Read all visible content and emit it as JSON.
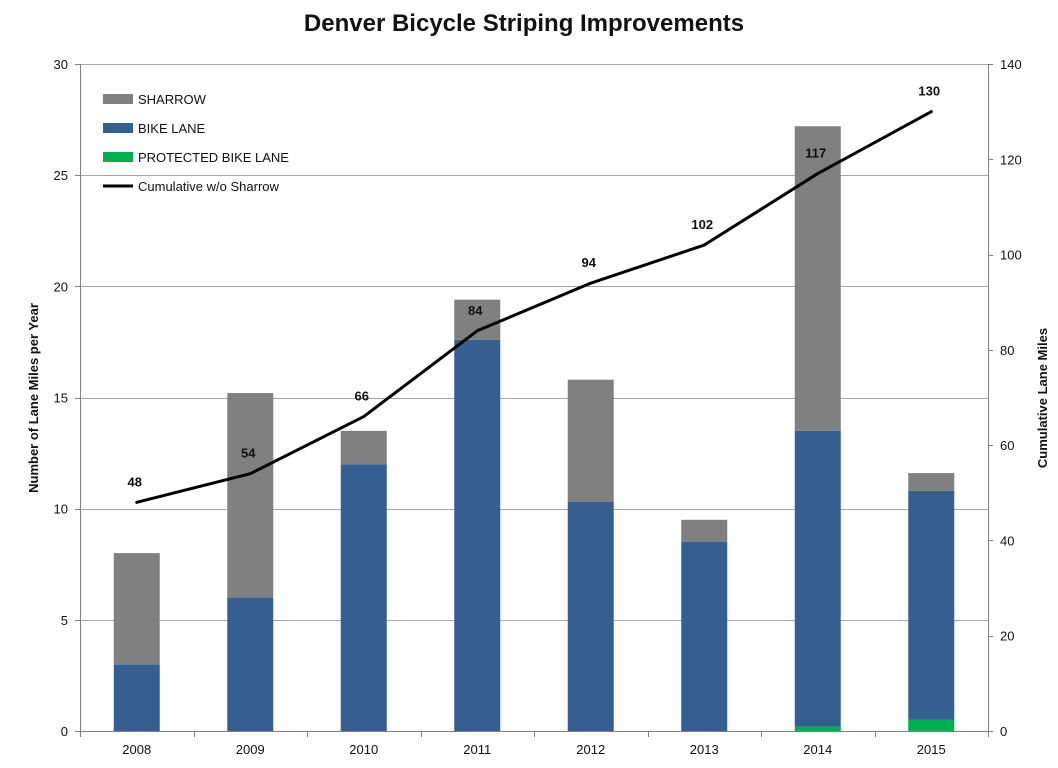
{
  "chart_data": {
    "type": "bar",
    "stacked": true,
    "title": "Denver Bicycle Striping Improvements",
    "categories": [
      "2008",
      "2009",
      "2010",
      "2011",
      "2012",
      "2013",
      "2014",
      "2015"
    ],
    "series": [
      {
        "name": "PROTECTED BIKE LANE",
        "type": "bar",
        "axis": "left",
        "color": "#00b050",
        "values": [
          0,
          0,
          0,
          0,
          0,
          0,
          0.2,
          0.5
        ]
      },
      {
        "name": "BIKE LANE",
        "type": "bar",
        "axis": "left",
        "color": "#355f91",
        "values": [
          3,
          6,
          12,
          17.6,
          10.3,
          8.5,
          13.3,
          10.3
        ]
      },
      {
        "name": "SHARROW",
        "type": "bar",
        "axis": "left",
        "color": "#808080",
        "values": [
          5,
          9.2,
          1.5,
          1.8,
          5.5,
          1,
          13.7,
          0.8
        ]
      },
      {
        "name": "Cumulative w/o Sharrow",
        "type": "line",
        "axis": "right",
        "color": "#000000",
        "values": [
          48,
          54,
          66,
          84,
          94,
          102,
          117,
          130
        ],
        "labels": [
          "48",
          "54",
          "66",
          "84",
          "94",
          "102",
          "117",
          "130"
        ]
      }
    ],
    "legend_order": [
      "SHARROW",
      "BIKE LANE",
      "PROTECTED BIKE LANE",
      "Cumulative w/o Sharrow"
    ],
    "legend_position": "top-left",
    "ylabel": "Number of Lane Miles per Year",
    "ylim": [
      0,
      30
    ],
    "yticks": [
      "0",
      "5",
      "10",
      "15",
      "20",
      "25",
      "30"
    ],
    "ytick_values": [
      0,
      5,
      10,
      15,
      20,
      25,
      30
    ],
    "y2label": "Cumulative Lane Miles",
    "y2lim": [
      0,
      140
    ],
    "y2ticks": [
      "0",
      "20",
      "40",
      "60",
      "80",
      "100",
      "120",
      "140"
    ],
    "y2tick_values": [
      0,
      20,
      40,
      60,
      80,
      100,
      120,
      140
    ],
    "grid": true
  }
}
